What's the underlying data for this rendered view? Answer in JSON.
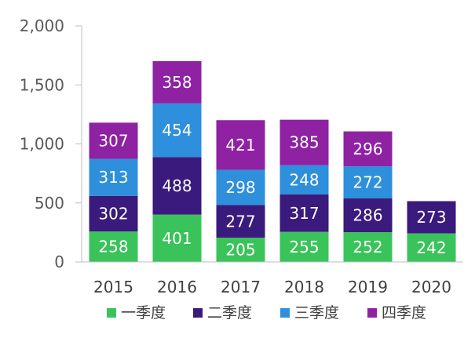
{
  "chart_data": {
    "type": "bar",
    "stacked": true,
    "title": "",
    "xlabel": "",
    "ylabel": "",
    "ylim": [
      0,
      2000
    ],
    "y_ticks": [
      0,
      500,
      1000,
      1500,
      2000
    ],
    "y_tick_labels": [
      "0",
      "500",
      "1,000",
      "1,500",
      "2,000"
    ],
    "grid": false,
    "legend_position": "bottom",
    "categories": [
      "2015",
      "2016",
      "2017",
      "2018",
      "2019",
      "2020"
    ],
    "series": [
      {
        "name": "一季度",
        "color": "#3ac35a",
        "values": [
          258,
          401,
          205,
          255,
          252,
          242
        ]
      },
      {
        "name": "二季度",
        "color": "#3a1a7c",
        "values": [
          302,
          488,
          277,
          317,
          286,
          273
        ]
      },
      {
        "name": "三季度",
        "color": "#2e8fdc",
        "values": [
          313,
          454,
          298,
          248,
          272,
          null
        ]
      },
      {
        "name": "四季度",
        "color": "#8e22a3",
        "values": [
          307,
          358,
          421,
          385,
          296,
          null
        ]
      }
    ]
  }
}
